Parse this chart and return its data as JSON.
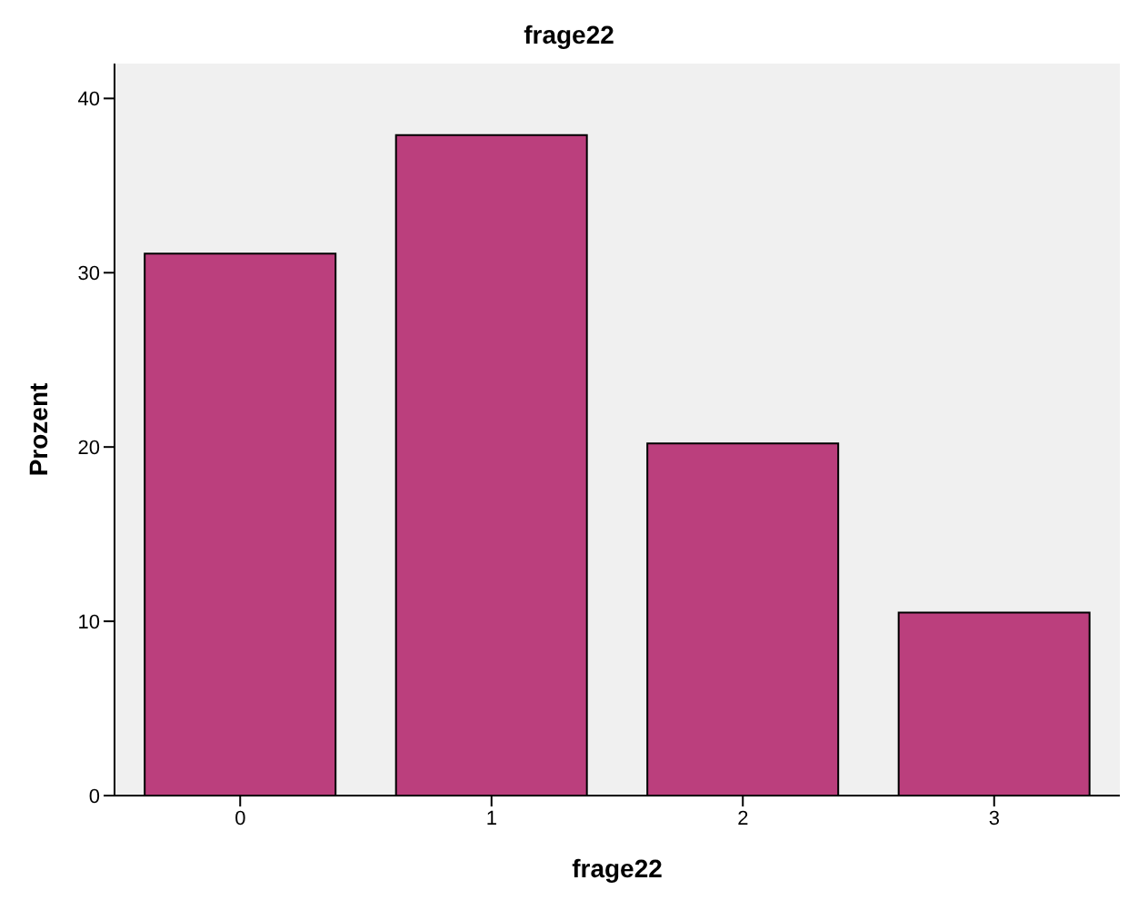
{
  "chart_data": {
    "type": "bar",
    "title": "frage22",
    "xlabel": "frage22",
    "ylabel": "Prozent",
    "categories": [
      "0",
      "1",
      "2",
      "3"
    ],
    "values": [
      31.1,
      37.9,
      20.2,
      10.5
    ],
    "color": "#bb3f7d",
    "ylim": [
      0,
      42
    ],
    "yticks": [
      0,
      10,
      20,
      30,
      40
    ],
    "grid": false
  }
}
